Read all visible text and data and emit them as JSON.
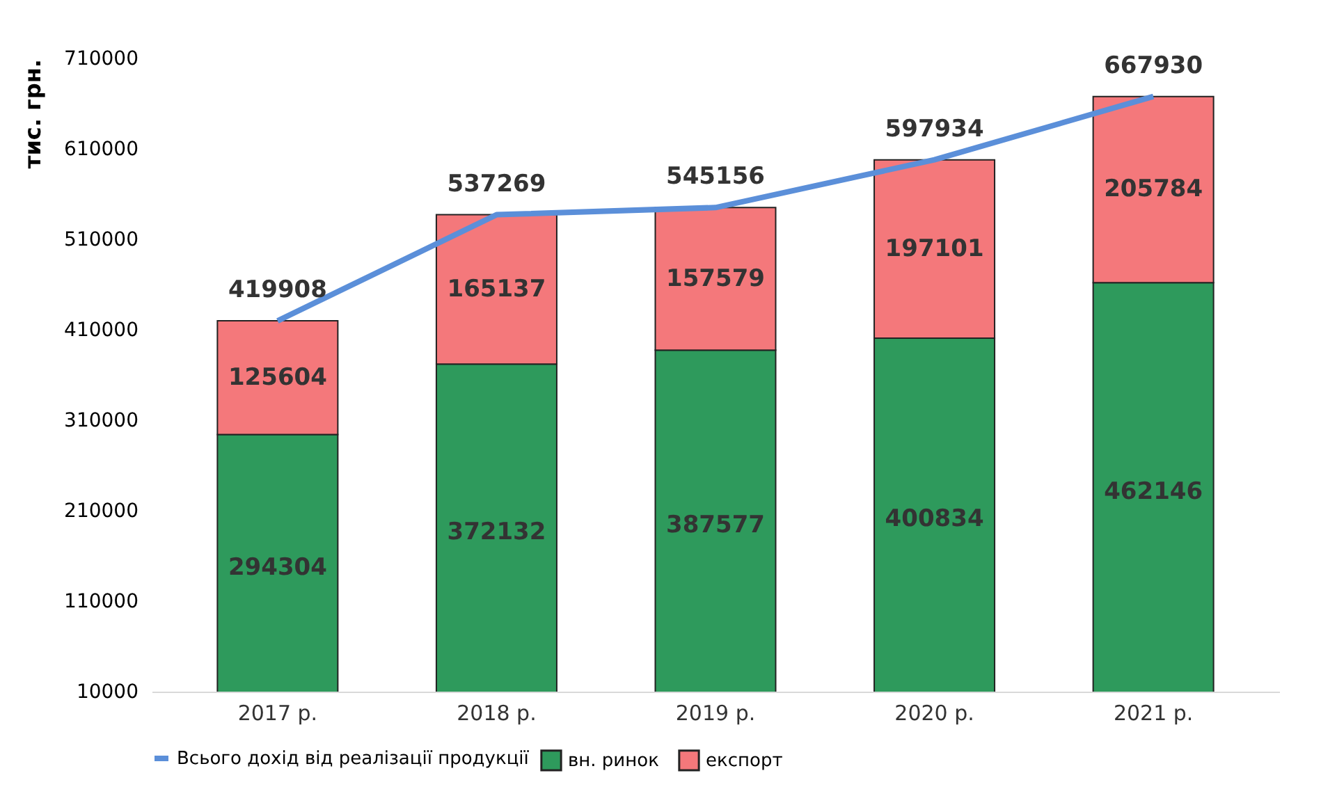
{
  "chart_data": {
    "type": "bar",
    "stacked": true,
    "ylabel": "тис. грн.",
    "categories": [
      "2017 р.",
      "2018 р.",
      "2019 р.",
      "2020 р.",
      "2021 р."
    ],
    "series": [
      {
        "name": "вн. ринок",
        "color": "#2e9a5c",
        "values": [
          294304,
          372132,
          387577,
          400834,
          462146
        ]
      },
      {
        "name": "експорт",
        "color": "#f4787b",
        "values": [
          125604,
          165137,
          157579,
          197101,
          205784
        ]
      },
      {
        "name": "Всього дохід від реалізації продукції",
        "type": "line",
        "color": "#5b8fd9",
        "values": [
          419908,
          537269,
          545156,
          597934,
          667930
        ]
      }
    ],
    "ylim": [
      10000,
      710000
    ],
    "yticks": [
      10000,
      110000,
      210000,
      310000,
      410000,
      510000,
      610000,
      710000
    ],
    "data_labels": true,
    "grid": false,
    "legend": "bottom"
  }
}
